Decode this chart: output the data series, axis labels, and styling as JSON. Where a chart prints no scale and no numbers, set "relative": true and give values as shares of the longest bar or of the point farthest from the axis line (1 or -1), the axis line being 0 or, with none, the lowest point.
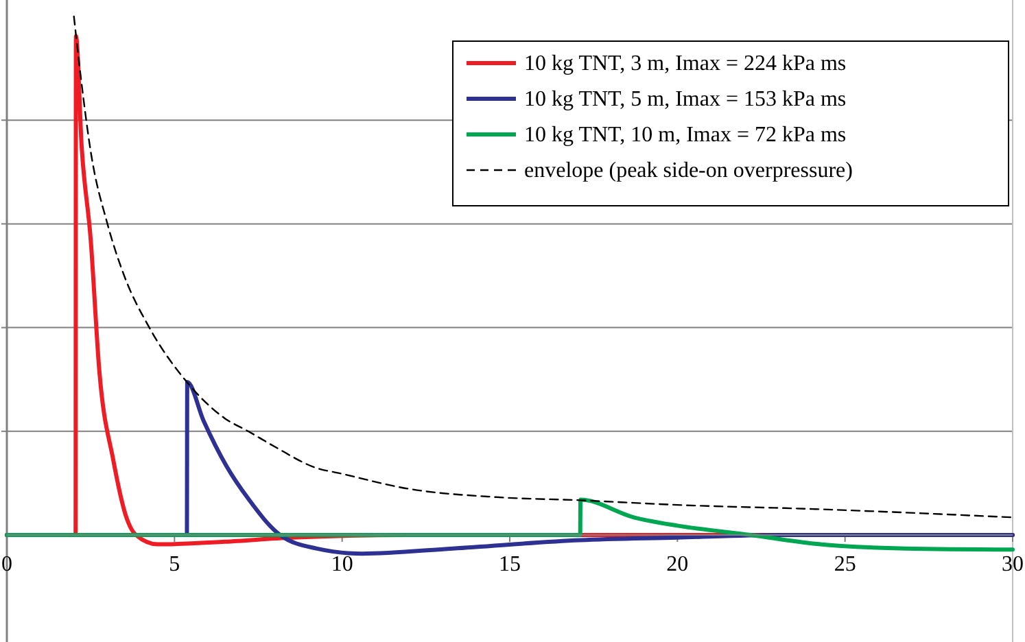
{
  "chart_data": {
    "type": "line",
    "relative": true,
    "grid": true,
    "legend": "top right",
    "xlim": [
      0,
      30
    ],
    "xticks": [
      0,
      5,
      10,
      15,
      20,
      25,
      30
    ],
    "series": [
      {
        "name": "10 kg TNT, 3 m, Imax = 224 kPa ms",
        "color": "#ee1c25",
        "x": [
          0,
          2.05,
          2.06,
          2.23,
          2.5,
          2.76,
          3.17,
          3.57,
          3.85,
          4.5,
          6.5,
          8.5,
          12,
          30
        ],
        "values": [
          0,
          0,
          0.962,
          0.75,
          0.57,
          0.315,
          0.146,
          0.033,
          0,
          -0.018,
          -0.013,
          -0.005,
          0,
          0
        ]
      },
      {
        "name": "10 kg TNT, 5 m, Imax = 153 kPa ms",
        "color": "#2e3192",
        "x": [
          0,
          5.37,
          5.38,
          5.87,
          6.55,
          7.2,
          8.15,
          9.23,
          10.6,
          13.3,
          17.1,
          20,
          23,
          30
        ],
        "values": [
          0,
          0,
          0.295,
          0.22,
          0.133,
          0.07,
          0,
          -0.026,
          -0.036,
          -0.026,
          -0.01,
          -0.005,
          0,
          0
        ]
      },
      {
        "name": "10 kg TNT, 10 m, Imax = 72 kPa ms",
        "color": "#00a651",
        "x": [
          0,
          17.1,
          17.11,
          18.7,
          20,
          22.2,
          24.1,
          26.8,
          30
        ],
        "values": [
          0,
          0,
          0.068,
          0.034,
          0.018,
          0,
          -0.017,
          -0.026,
          -0.028
        ]
      },
      {
        "name": "envelope (peak side-on overpressure)",
        "color": "#000000",
        "line_style": "dashed",
        "x": [
          2.0,
          2.23,
          2.5,
          3.0,
          3.5,
          4.25,
          5.37,
          6.5,
          7.2,
          8,
          9.2,
          10,
          11.9,
          14.6,
          17.1,
          20,
          24.1,
          30
        ],
        "values": [
          1.0,
          0.87,
          0.74,
          0.6,
          0.5,
          0.4,
          0.295,
          0.225,
          0.2,
          0.17,
          0.13,
          0.118,
          0.09,
          0.073,
          0.067,
          0.058,
          0.05,
          0.034
        ]
      }
    ]
  }
}
